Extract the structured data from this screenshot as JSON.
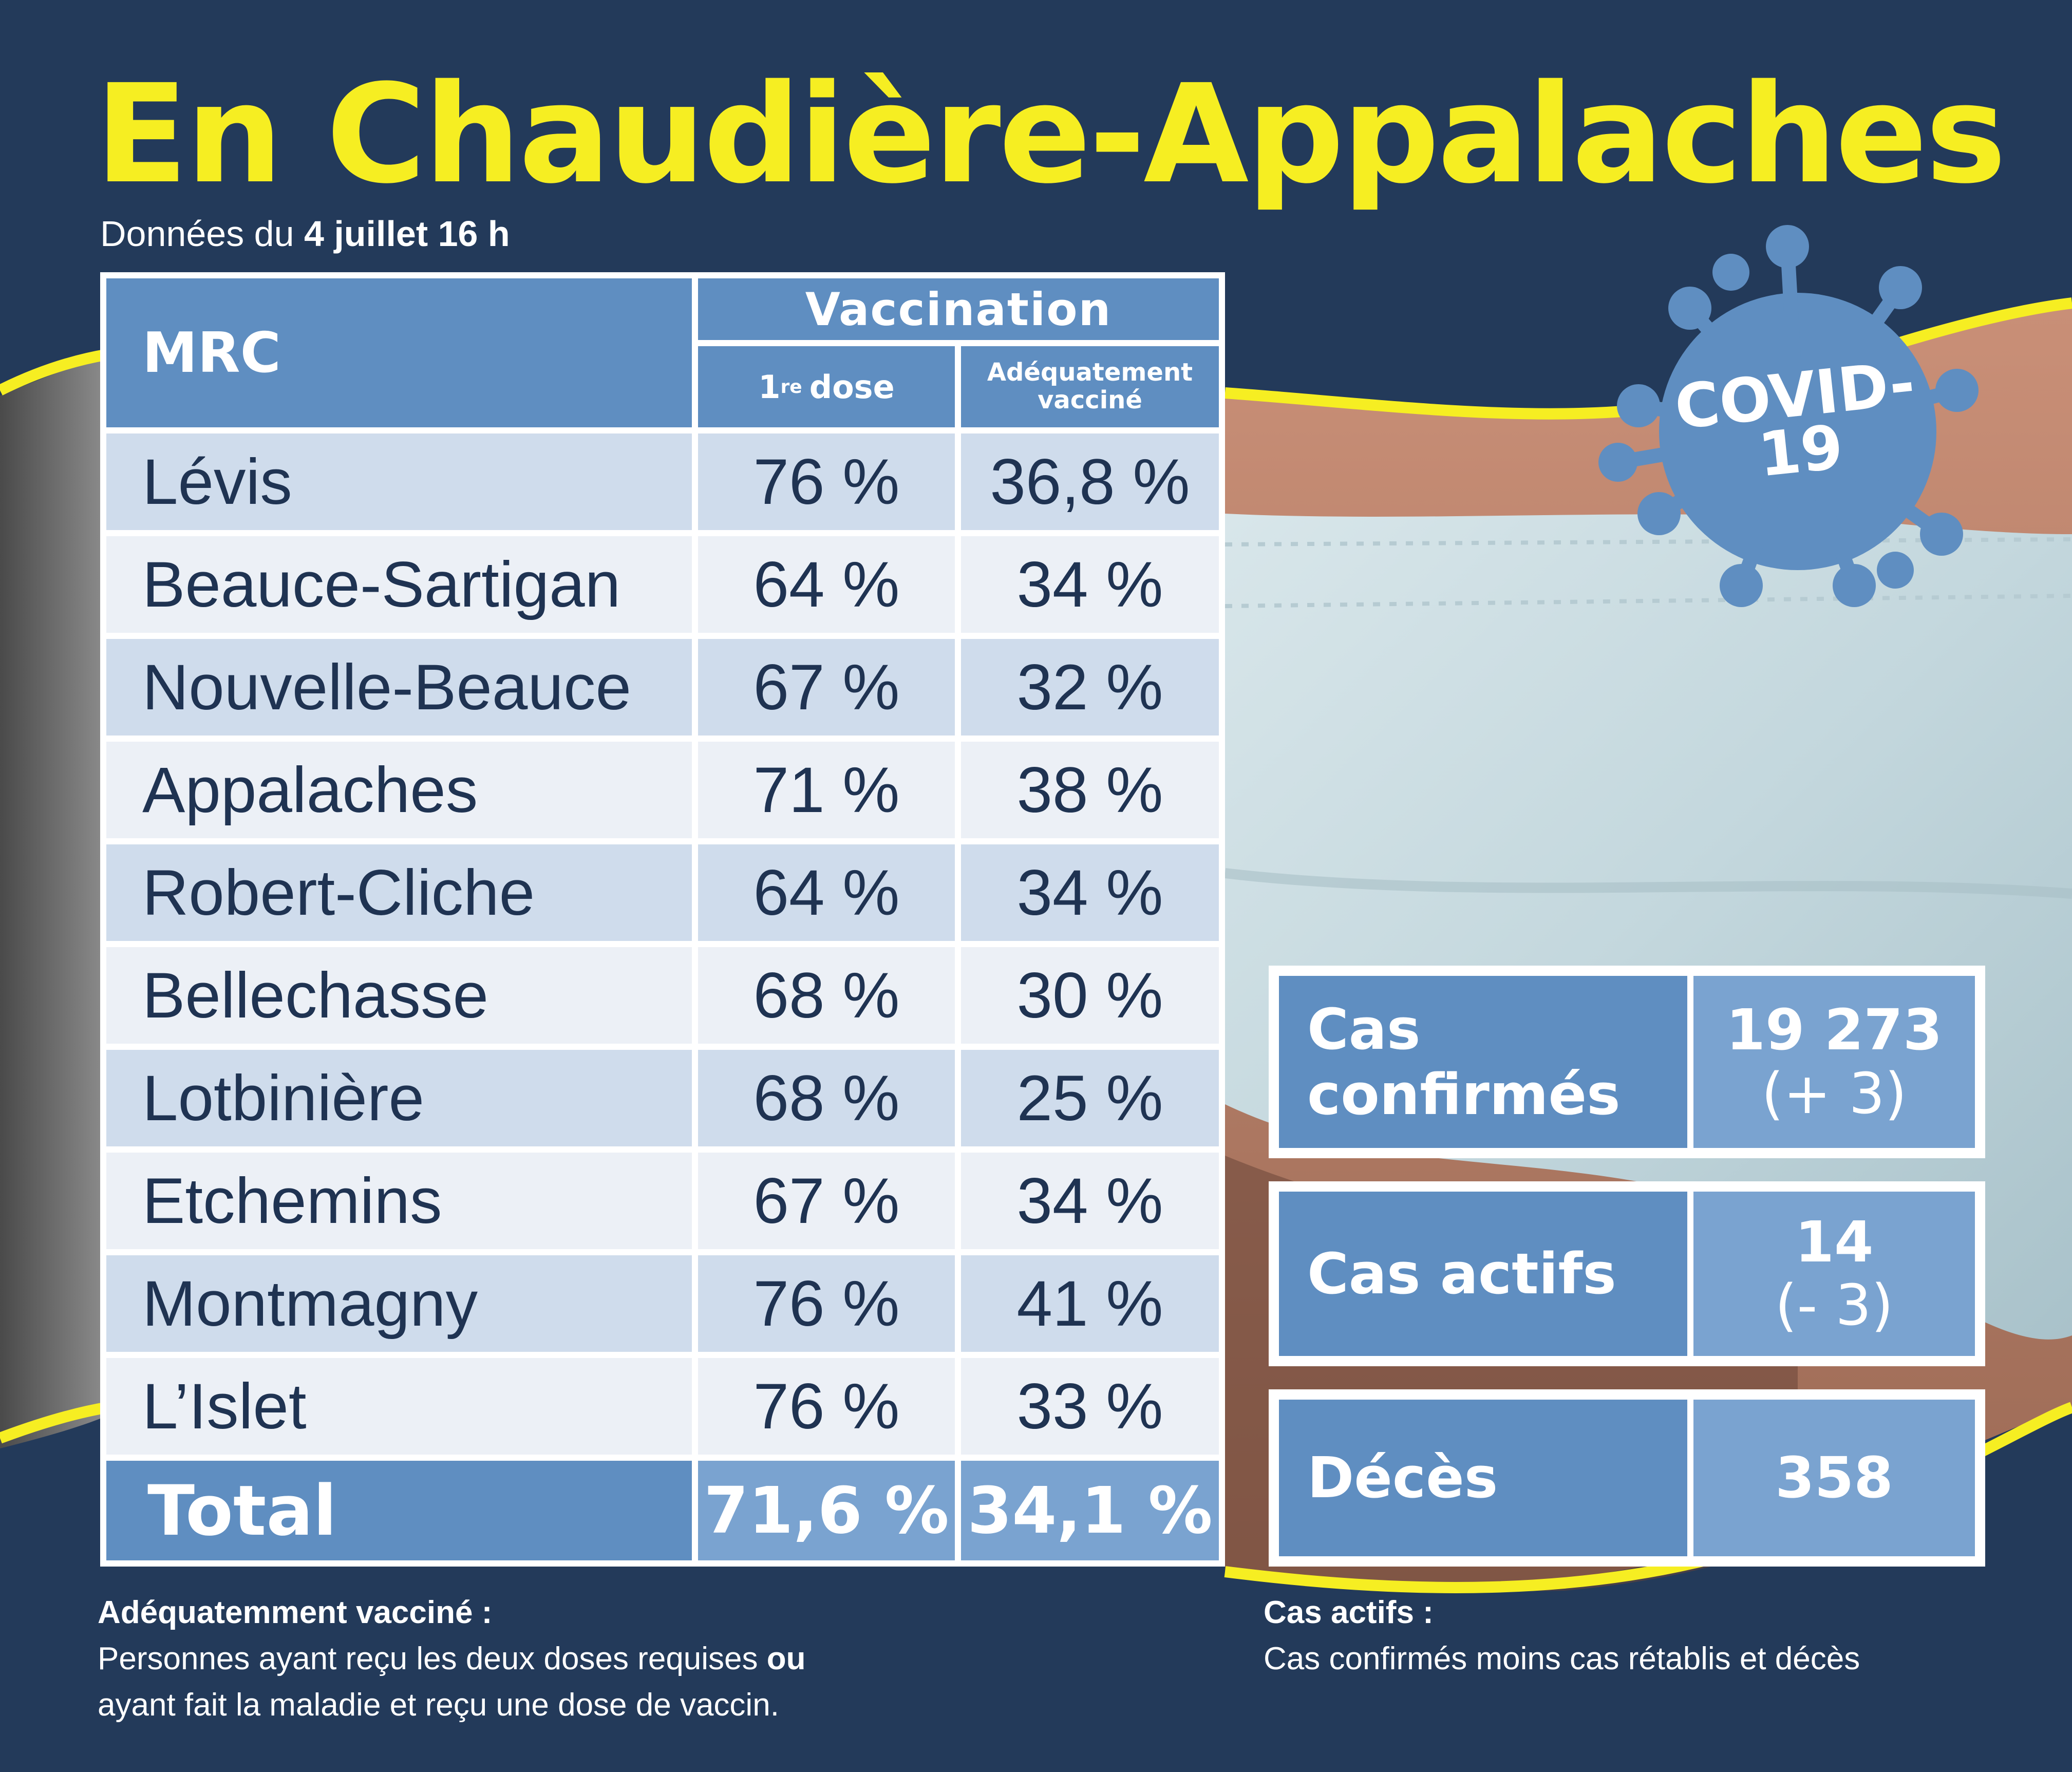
{
  "title": "En Chaudière-Appalaches",
  "subtitle": {
    "prefix": "Données du",
    "date": "4 juillet 16 h"
  },
  "table": {
    "header_mrc": "MRC",
    "header_group": "Vaccination",
    "header_dose1_main": "1",
    "header_dose1_sup": "re",
    "header_dose1_rest": "dose",
    "header_adequate_line1": "Adéquatement",
    "header_adequate_line2": "vacciné",
    "rows": [
      {
        "name": "Lévis",
        "dose1": "76 %",
        "adequate": "36,8 %"
      },
      {
        "name": "Beauce-Sartigan",
        "dose1": "64 %",
        "adequate": "34 %"
      },
      {
        "name": "Nouvelle-Beauce",
        "dose1": "67 %",
        "adequate": "32 %"
      },
      {
        "name": "Appalaches",
        "dose1": "71 %",
        "adequate": "38 %"
      },
      {
        "name": "Robert-Cliche",
        "dose1": "64 %",
        "adequate": "34 %"
      },
      {
        "name": "Bellechasse",
        "dose1": "68 %",
        "adequate": "30 %"
      },
      {
        "name": "Lotbinière",
        "dose1": "68 %",
        "adequate": "25 %"
      },
      {
        "name": "Etchemins",
        "dose1": "67 %",
        "adequate": "34 %"
      },
      {
        "name": "Montmagny",
        "dose1": "76 %",
        "adequate": "41 %"
      },
      {
        "name": "L’Islet",
        "dose1": "76 %",
        "adequate": "33 %"
      }
    ],
    "total": {
      "name": "Total",
      "dose1": "71,6 %",
      "adequate": "34,1 %"
    }
  },
  "badge": {
    "line1": "COVID-",
    "line2": "19"
  },
  "stats": {
    "confirmed": {
      "label_line1": "Cas",
      "label_line2": "confirmés",
      "value": "19 273",
      "change": "(+ 3)"
    },
    "active": {
      "label": "Cas actifs",
      "value": "14",
      "change": "(- 3)"
    },
    "deaths": {
      "label": "Décès",
      "value": "358"
    }
  },
  "notes": {
    "adequate_title": "Adéquatemment vacciné :",
    "adequate_line1_a": "Personnes ayant reçu les deux doses requises ",
    "adequate_line1_b": "ou",
    "adequate_line2": "ayant fait la maladie et reçu une dose de vaccin.",
    "active_title": "Cas actifs :",
    "active_text": "Cas confirmés moins cas rétablis et décès"
  },
  "colors": {
    "background": "#233a5a",
    "title_yellow": "#f6ee22",
    "header_blue": "#5f8ec1",
    "value_blue": "#7aa3d0",
    "row_light": "#cfdcec",
    "row_pale": "#ecf0f6",
    "text_dark": "#1f3352"
  }
}
